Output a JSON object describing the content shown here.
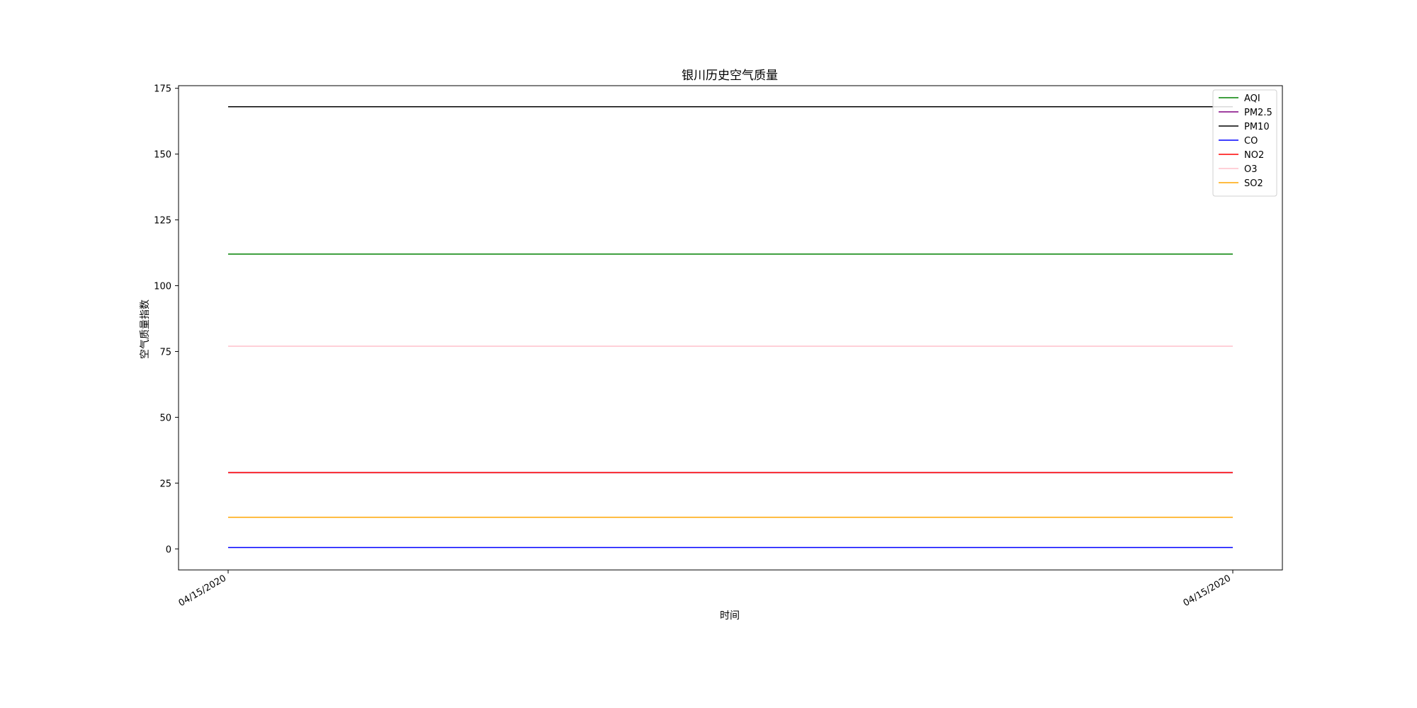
{
  "chart_data": {
    "type": "line",
    "title": "银川历史空气质量",
    "xlabel": "时间",
    "ylabel": "空气质量指数",
    "x": [
      "04/15/2020",
      "04/15/2020"
    ],
    "ylim": [
      -8,
      176
    ],
    "yticks": [
      0,
      25,
      50,
      75,
      100,
      125,
      150,
      175
    ],
    "grid": false,
    "legend_position": "top-right",
    "series": [
      {
        "name": "AQI",
        "color": "#008000",
        "values": [
          112,
          112
        ]
      },
      {
        "name": "PM2.5",
        "color": "#800080",
        "values": [
          29,
          29
        ]
      },
      {
        "name": "PM10",
        "color": "#000000",
        "values": [
          168,
          168
        ]
      },
      {
        "name": "CO",
        "color": "#0000ff",
        "values": [
          0.5,
          0.5
        ]
      },
      {
        "name": "NO2",
        "color": "#ff0000",
        "values": [
          29,
          29
        ]
      },
      {
        "name": "O3",
        "color": "#ffc0cb",
        "values": [
          77,
          77
        ]
      },
      {
        "name": "SO2",
        "color": "#ffa500",
        "values": [
          12,
          12
        ]
      }
    ]
  }
}
